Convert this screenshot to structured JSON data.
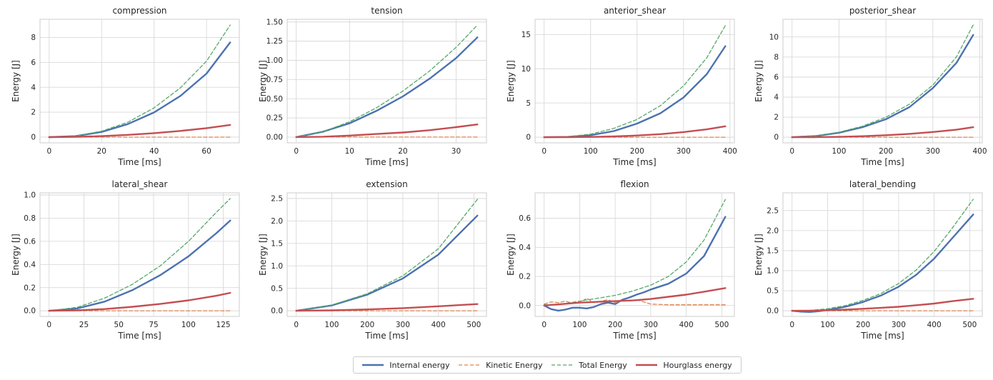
{
  "figure": {
    "series_styles": [
      {
        "name": "Internal energy",
        "color": "#4c72b0",
        "style": "solid",
        "width": 2.4
      },
      {
        "name": "Kinetic Energy",
        "color": "#dd8452",
        "style": "dashed",
        "width": 1.3
      },
      {
        "name": "Total Energy",
        "color": "#55a868",
        "style": "dashed",
        "width": 1.3
      },
      {
        "name": "Hourglass energy",
        "color": "#c44e52",
        "style": "solid",
        "width": 2.4
      }
    ],
    "legend_placement": "bottom-center",
    "grid": true
  },
  "chart_data": [
    {
      "type": "line",
      "title": "compression",
      "xlabel": "Time [ms]",
      "ylabel": "Energy [J]",
      "xlim": [
        -3.5,
        72.5
      ],
      "ylim": [
        -0.46,
        9.46
      ],
      "xticks": [
        0,
        20,
        40,
        60
      ],
      "xtick_labels": [
        "0",
        "20",
        "40",
        "60"
      ],
      "yticks": [
        0,
        2,
        4,
        6,
        8
      ],
      "ytick_labels": [
        "0",
        "2",
        "4",
        "6",
        "8"
      ],
      "series": [
        {
          "name": "Internal energy",
          "x": [
            0,
            10,
            20,
            30,
            40,
            50,
            60,
            69
          ],
          "y": [
            0,
            0.08,
            0.42,
            1.05,
            1.98,
            3.3,
            5.1,
            7.6
          ]
        },
        {
          "name": "Kinetic Energy",
          "x": [
            0,
            69
          ],
          "y": [
            0,
            0
          ]
        },
        {
          "name": "Total Energy",
          "x": [
            0,
            10,
            20,
            30,
            40,
            50,
            60,
            69
          ],
          "y": [
            0,
            0.09,
            0.48,
            1.2,
            2.35,
            3.95,
            6.1,
            9.0
          ]
        },
        {
          "name": "Hourglass energy",
          "x": [
            0,
            10,
            20,
            30,
            40,
            50,
            60,
            69
          ],
          "y": [
            0,
            0.02,
            0.08,
            0.18,
            0.32,
            0.5,
            0.72,
            0.98
          ]
        }
      ]
    },
    {
      "type": "line",
      "title": "tension",
      "xlabel": "Time [ms]",
      "ylabel": "Energy [J]",
      "xlim": [
        -1.7,
        35.7
      ],
      "ylim": [
        -0.075,
        1.535
      ],
      "xticks": [
        0,
        10,
        20,
        30
      ],
      "xtick_labels": [
        "0",
        "10",
        "20",
        "30"
      ],
      "yticks": [
        0,
        0.25,
        0.5,
        0.75,
        1.0,
        1.25,
        1.5
      ],
      "ytick_labels": [
        "0.00",
        "0.25",
        "0.50",
        "0.75",
        "1.00",
        "1.25",
        "1.50"
      ],
      "series": [
        {
          "name": "Internal energy",
          "x": [
            0,
            5,
            10,
            15,
            20,
            25,
            30,
            34
          ],
          "y": [
            0,
            0.07,
            0.18,
            0.34,
            0.53,
            0.76,
            1.03,
            1.3
          ]
        },
        {
          "name": "Kinetic Energy",
          "x": [
            0,
            34
          ],
          "y": [
            0,
            0
          ]
        },
        {
          "name": "Total Energy",
          "x": [
            0,
            5,
            10,
            15,
            20,
            25,
            30,
            34
          ],
          "y": [
            0,
            0.07,
            0.2,
            0.38,
            0.6,
            0.86,
            1.17,
            1.46
          ]
        },
        {
          "name": "Hourglass energy",
          "x": [
            0,
            5,
            10,
            15,
            20,
            25,
            30,
            34
          ],
          "y": [
            0,
            0.005,
            0.02,
            0.04,
            0.06,
            0.09,
            0.13,
            0.165
          ]
        }
      ]
    },
    {
      "type": "line",
      "title": "anterior_shear",
      "xlabel": "Time [ms]",
      "ylabel": "Energy [J]",
      "xlim": [
        -19.5,
        409.5
      ],
      "ylim": [
        -0.82,
        17.22
      ],
      "xticks": [
        0,
        100,
        200,
        300,
        400
      ],
      "xtick_labels": [
        "0",
        "100",
        "200",
        "300",
        "400"
      ],
      "yticks": [
        0,
        5,
        10,
        15
      ],
      "ytick_labels": [
        "0",
        "5",
        "10",
        "15"
      ],
      "series": [
        {
          "name": "Internal energy",
          "x": [
            0,
            50,
            100,
            150,
            200,
            250,
            300,
            350,
            390
          ],
          "y": [
            0,
            0.05,
            0.3,
            0.9,
            2.0,
            3.5,
            5.8,
            9.2,
            13.3
          ]
        },
        {
          "name": "Kinetic Energy",
          "x": [
            0,
            390
          ],
          "y": [
            0,
            0
          ]
        },
        {
          "name": "Total Energy",
          "x": [
            0,
            50,
            100,
            150,
            200,
            250,
            300,
            350,
            390
          ],
          "y": [
            0,
            0.08,
            0.45,
            1.3,
            2.6,
            4.6,
            7.5,
            11.6,
            16.3
          ]
        },
        {
          "name": "Hourglass energy",
          "x": [
            0,
            50,
            100,
            150,
            200,
            250,
            300,
            350,
            390
          ],
          "y": [
            0,
            0.01,
            0.05,
            0.12,
            0.25,
            0.45,
            0.75,
            1.15,
            1.6
          ]
        }
      ]
    },
    {
      "type": "line",
      "title": "posterior_shear",
      "xlabel": "Time [ms]",
      "ylabel": "Energy [J]",
      "xlim": [
        -19.3,
        405.3
      ],
      "ylim": [
        -0.56,
        11.76
      ],
      "xticks": [
        0,
        100,
        200,
        300,
        400
      ],
      "xtick_labels": [
        "0",
        "100",
        "200",
        "300",
        "400"
      ],
      "yticks": [
        0,
        2,
        4,
        6,
        8,
        10
      ],
      "ytick_labels": [
        "0",
        "2",
        "4",
        "6",
        "8",
        "10"
      ],
      "series": [
        {
          "name": "Internal energy",
          "x": [
            0,
            50,
            100,
            150,
            200,
            250,
            300,
            350,
            386
          ],
          "y": [
            0,
            0.12,
            0.45,
            1.0,
            1.8,
            3.0,
            4.9,
            7.4,
            10.2
          ]
        },
        {
          "name": "Kinetic Energy",
          "x": [
            0,
            386
          ],
          "y": [
            0,
            0
          ]
        },
        {
          "name": "Total Energy",
          "x": [
            0,
            50,
            100,
            150,
            200,
            250,
            300,
            350,
            386
          ],
          "y": [
            0,
            0.13,
            0.5,
            1.1,
            2.0,
            3.3,
            5.2,
            8.0,
            11.2
          ]
        },
        {
          "name": "Hourglass energy",
          "x": [
            0,
            50,
            100,
            150,
            200,
            250,
            300,
            350,
            386
          ],
          "y": [
            0,
            0.01,
            0.04,
            0.1,
            0.2,
            0.34,
            0.52,
            0.75,
            1.0
          ]
        }
      ]
    },
    {
      "type": "line",
      "title": "lateral_shear",
      "xlabel": "Time [ms]",
      "ylabel": "Energy [J]",
      "xlim": [
        -6.5,
        136.5
      ],
      "ylim": [
        -0.0485,
        1.0185
      ],
      "xticks": [
        0,
        25,
        50,
        75,
        100,
        125
      ],
      "xtick_labels": [
        "0",
        "25",
        "50",
        "75",
        "100",
        "125"
      ],
      "yticks": [
        0,
        0.2,
        0.4,
        0.6,
        0.8,
        1.0
      ],
      "ytick_labels": [
        "0.0",
        "0.2",
        "0.4",
        "0.6",
        "0.8",
        "1.0"
      ],
      "series": [
        {
          "name": "Internal energy",
          "x": [
            0,
            20,
            40,
            60,
            80,
            100,
            120,
            130
          ],
          "y": [
            0,
            0.02,
            0.08,
            0.18,
            0.31,
            0.47,
            0.67,
            0.78
          ]
        },
        {
          "name": "Kinetic Energy",
          "x": [
            0,
            130
          ],
          "y": [
            0,
            0
          ]
        },
        {
          "name": "Total Energy",
          "x": [
            0,
            20,
            40,
            60,
            80,
            100,
            120,
            130
          ],
          "y": [
            0,
            0.03,
            0.11,
            0.23,
            0.39,
            0.6,
            0.85,
            0.97
          ]
        },
        {
          "name": "Hourglass energy",
          "x": [
            0,
            20,
            40,
            60,
            80,
            100,
            120,
            130
          ],
          "y": [
            0,
            0.004,
            0.015,
            0.035,
            0.06,
            0.09,
            0.13,
            0.155
          ]
        }
      ]
    },
    {
      "type": "line",
      "title": "extension",
      "xlabel": "Time [ms]",
      "ylabel": "Energy [J]",
      "xlim": [
        -25.5,
        535.5
      ],
      "ylim": [
        -0.125,
        2.625
      ],
      "xticks": [
        0,
        100,
        200,
        300,
        400,
        500
      ],
      "xtick_labels": [
        "0",
        "100",
        "200",
        "300",
        "400",
        "500"
      ],
      "yticks": [
        0,
        0.5,
        1.0,
        1.5,
        2.0,
        2.5
      ],
      "ytick_labels": [
        "0.0",
        "0.5",
        "1.0",
        "1.5",
        "2.0",
        "2.5"
      ],
      "series": [
        {
          "name": "Internal energy",
          "x": [
            0,
            100,
            200,
            300,
            400,
            510
          ],
          "y": [
            0,
            0.12,
            0.36,
            0.72,
            1.25,
            2.12
          ]
        },
        {
          "name": "Kinetic Energy",
          "x": [
            0,
            510
          ],
          "y": [
            0,
            0
          ]
        },
        {
          "name": "Total Energy",
          "x": [
            0,
            100,
            200,
            300,
            400,
            510
          ],
          "y": [
            0,
            0.13,
            0.38,
            0.78,
            1.38,
            2.48
          ]
        },
        {
          "name": "Hourglass energy",
          "x": [
            0,
            100,
            200,
            300,
            400,
            510
          ],
          "y": [
            0,
            0.01,
            0.03,
            0.06,
            0.1,
            0.15
          ]
        }
      ]
    },
    {
      "type": "line",
      "title": "flexion",
      "xlabel": "Time [ms]",
      "ylabel": "Energy [J]",
      "xlim": [
        -25.5,
        535.5
      ],
      "ylim": [
        -0.075,
        0.775
      ],
      "xticks": [
        0,
        100,
        200,
        300,
        400,
        500
      ],
      "xtick_labels": [
        "0",
        "100",
        "200",
        "300",
        "400",
        "500"
      ],
      "yticks": [
        0,
        0.2,
        0.4,
        0.6
      ],
      "ytick_labels": [
        "0.0",
        "0.2",
        "0.4",
        "0.6"
      ],
      "series": [
        {
          "name": "Internal energy",
          "x": [
            0,
            20,
            40,
            60,
            80,
            100,
            120,
            140,
            160,
            180,
            200,
            220,
            240,
            260,
            280,
            300,
            350,
            400,
            450,
            510
          ],
          "y": [
            0,
            -0.025,
            -0.035,
            -0.028,
            -0.015,
            -0.015,
            -0.02,
            -0.01,
            0.01,
            0.02,
            0.01,
            0.04,
            0.055,
            0.075,
            0.09,
            0.11,
            0.15,
            0.22,
            0.34,
            0.61
          ]
        },
        {
          "name": "Kinetic Energy",
          "x": [
            0,
            20,
            40,
            60,
            80,
            100,
            120,
            140,
            160,
            180,
            200,
            220,
            240,
            260,
            280,
            300,
            350,
            400,
            450,
            510
          ],
          "y": [
            0.01,
            0.025,
            0.02,
            0.03,
            0.015,
            0.02,
            0.05,
            0.02,
            0.03,
            0.04,
            0.02,
            0.035,
            0.03,
            0.04,
            0.025,
            0.01,
            0.005,
            0.005,
            0.005,
            0.005
          ]
        },
        {
          "name": "Total Energy",
          "x": [
            0,
            50,
            100,
            150,
            200,
            250,
            300,
            350,
            400,
            450,
            510
          ],
          "y": [
            0.005,
            0.01,
            0.03,
            0.05,
            0.07,
            0.1,
            0.14,
            0.2,
            0.3,
            0.45,
            0.73
          ]
        },
        {
          "name": "Hourglass energy",
          "x": [
            0,
            50,
            100,
            150,
            200,
            250,
            300,
            350,
            400,
            450,
            510
          ],
          "y": [
            0,
            0.01,
            0.02,
            0.025,
            0.03,
            0.035,
            0.045,
            0.06,
            0.075,
            0.095,
            0.12
          ]
        }
      ]
    },
    {
      "type": "line",
      "title": "lateral_bending",
      "xlabel": "Time [ms]",
      "ylabel": "Energy [J]",
      "xlim": [
        -25.5,
        535.5
      ],
      "ylim": [
        -0.14,
        2.94
      ],
      "xticks": [
        0,
        100,
        200,
        300,
        400,
        500
      ],
      "xtick_labels": [
        "0",
        "100",
        "200",
        "300",
        "400",
        "500"
      ],
      "yticks": [
        0,
        0.5,
        1.0,
        1.5,
        2.0,
        2.5
      ],
      "ytick_labels": [
        "0.0",
        "0.5",
        "1.0",
        "1.5",
        "2.0",
        "2.5"
      ],
      "series": [
        {
          "name": "Internal energy",
          "x": [
            0,
            25,
            50,
            75,
            100,
            150,
            200,
            250,
            300,
            350,
            400,
            450,
            510
          ],
          "y": [
            0,
            -0.02,
            -0.03,
            -0.01,
            0.02,
            0.1,
            0.22,
            0.38,
            0.6,
            0.9,
            1.3,
            1.8,
            2.4
          ]
        },
        {
          "name": "Kinetic Energy",
          "x": [
            0,
            510
          ],
          "y": [
            0,
            0
          ]
        },
        {
          "name": "Total Energy",
          "x": [
            0,
            50,
            100,
            150,
            200,
            250,
            300,
            350,
            400,
            450,
            510
          ],
          "y": [
            0,
            0.01,
            0.05,
            0.13,
            0.26,
            0.43,
            0.68,
            1.02,
            1.48,
            2.05,
            2.78
          ]
        },
        {
          "name": "Hourglass energy",
          "x": [
            0,
            50,
            100,
            150,
            200,
            250,
            300,
            350,
            400,
            450,
            510
          ],
          "y": [
            0,
            0.005,
            0.015,
            0.03,
            0.05,
            0.075,
            0.1,
            0.14,
            0.18,
            0.24,
            0.3
          ]
        }
      ]
    }
  ]
}
